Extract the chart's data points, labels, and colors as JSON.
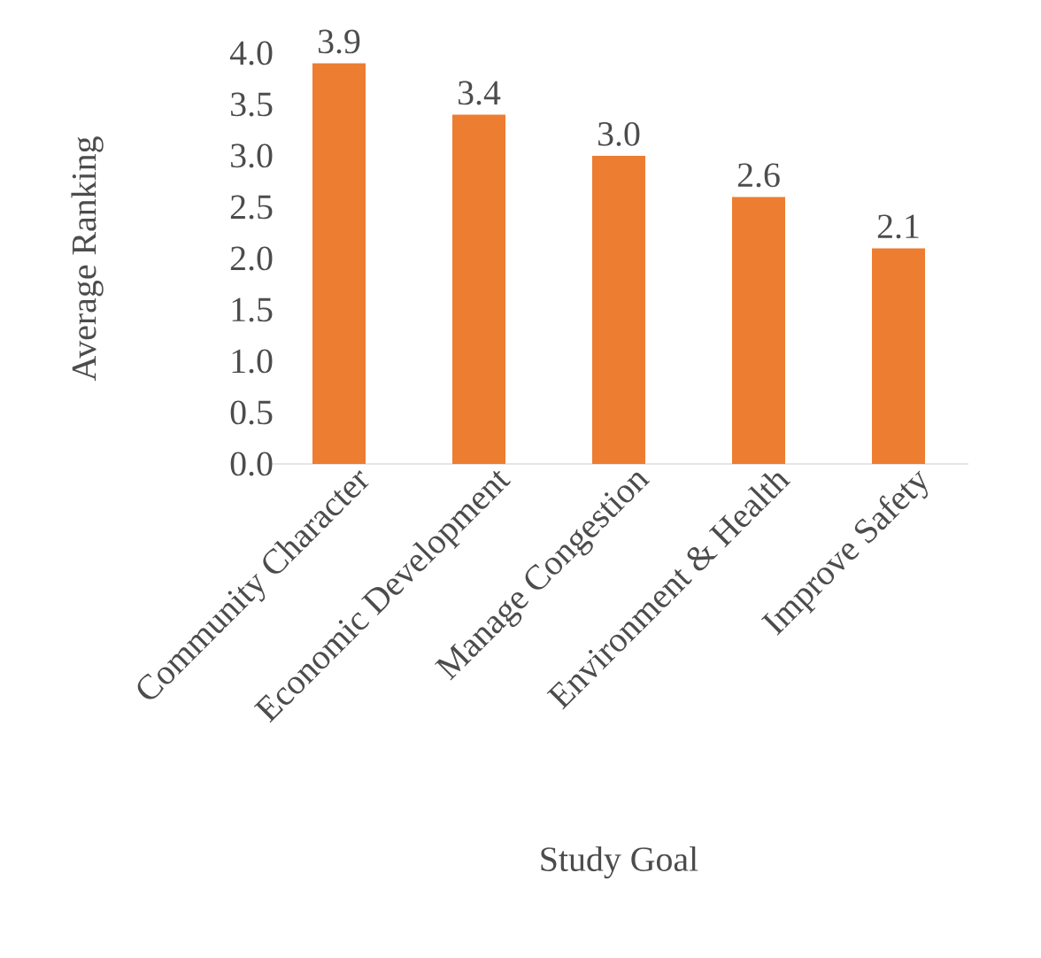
{
  "chart_data": {
    "type": "bar",
    "xlabel": "Study Goal",
    "ylabel": "Average Ranking",
    "categories": [
      "Community Character",
      "Economic Development",
      "Manage Congestion",
      "Environment & Health",
      "Improve Safety"
    ],
    "values": [
      3.9,
      3.4,
      3.0,
      2.6,
      2.1
    ],
    "color": "#ed7d31",
    "value_labels": [
      "3.9",
      "3.4",
      "3.0",
      "2.6",
      "2.1"
    ],
    "ylim": [
      0,
      4
    ],
    "yticks": [
      {
        "value": 0,
        "label": "0.0"
      },
      {
        "value": 0.5,
        "label": "0.5"
      },
      {
        "value": 1,
        "label": "1.0"
      },
      {
        "value": 1.5,
        "label": "1.5"
      },
      {
        "value": 2,
        "label": "2.0"
      },
      {
        "value": 2.5,
        "label": "2.5"
      },
      {
        "value": 3,
        "label": "3.0"
      },
      {
        "value": 3.5,
        "label": "3.5"
      },
      {
        "value": 4,
        "label": "4.0"
      }
    ],
    "grid": false
  }
}
